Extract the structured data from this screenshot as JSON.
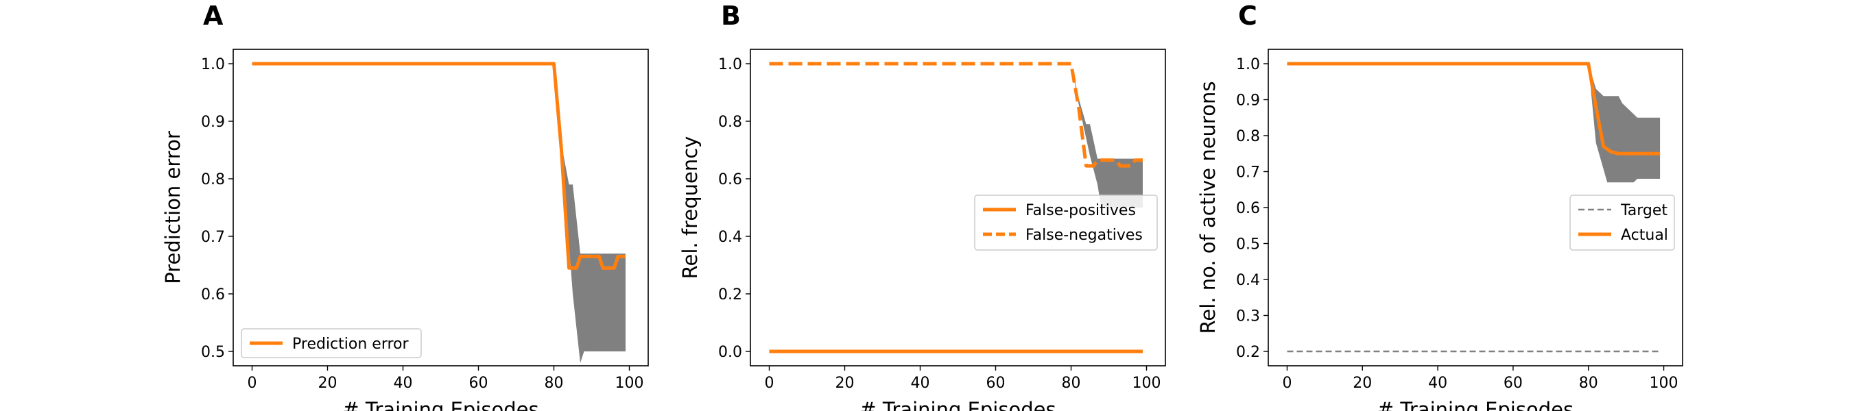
{
  "chart_data": [
    {
      "panel": "A",
      "type": "line",
      "xlabel": "# Training Episodes",
      "ylabel": "Prediction error",
      "xlim": [
        -5,
        105
      ],
      "ylim": [
        0.475,
        1.025
      ],
      "xticks": [
        0,
        20,
        40,
        60,
        80,
        100
      ],
      "yticks": [
        0.5,
        0.6,
        0.7,
        0.8,
        0.9,
        1.0
      ],
      "xtick_labels": [
        "0",
        "20",
        "40",
        "60",
        "80",
        "100"
      ],
      "ytick_labels": [
        "0.5",
        "0.6",
        "0.7",
        "0.8",
        "0.9",
        "1.0"
      ],
      "legend_position": "lower-left",
      "band": {
        "color": "#808080",
        "upper": [
          [
            80,
            1.0
          ],
          [
            82,
            0.86
          ],
          [
            84,
            0.79
          ],
          [
            85,
            0.79
          ],
          [
            87,
            0.67
          ],
          [
            98,
            0.67
          ],
          [
            99,
            0.67
          ]
        ],
        "lower": [
          [
            99,
            0.5
          ],
          [
            88,
            0.5
          ],
          [
            87,
            0.48
          ],
          [
            85,
            0.6
          ],
          [
            82,
            0.86
          ],
          [
            80,
            1.0
          ]
        ]
      },
      "series": [
        {
          "name": "Prediction error",
          "color": "#ff7f0e",
          "dash": "solid",
          "points": [
            [
              0,
              1.0
            ],
            [
              80,
              1.0
            ],
            [
              82,
              0.85
            ],
            [
              84,
              0.645
            ],
            [
              86,
              0.645
            ],
            [
              87,
              0.665
            ],
            [
              92,
              0.665
            ],
            [
              93,
              0.645
            ],
            [
              96,
              0.645
            ],
            [
              97,
              0.665
            ],
            [
              99,
              0.665
            ]
          ]
        }
      ]
    },
    {
      "panel": "B",
      "type": "line",
      "xlabel": "# Training Episodes",
      "ylabel": "Rel. frequency",
      "xlim": [
        -5,
        105
      ],
      "ylim": [
        -0.05,
        1.05
      ],
      "xticks": [
        0,
        20,
        40,
        60,
        80,
        100
      ],
      "yticks": [
        0.0,
        0.2,
        0.4,
        0.6,
        0.8,
        1.0
      ],
      "xtick_labels": [
        "0",
        "20",
        "40",
        "60",
        "80",
        "100"
      ],
      "ytick_labels": [
        "0.0",
        "0.2",
        "0.4",
        "0.6",
        "0.8",
        "1.0"
      ],
      "legend_position": "center-right",
      "band": {
        "color": "#808080",
        "upper": [
          [
            80,
            1.0
          ],
          [
            82,
            0.88
          ],
          [
            84,
            0.79
          ],
          [
            85,
            0.79
          ],
          [
            87,
            0.67
          ],
          [
            99,
            0.67
          ]
        ],
        "lower": [
          [
            99,
            0.5
          ],
          [
            88,
            0.5
          ],
          [
            87,
            0.58
          ],
          [
            85,
            0.68
          ],
          [
            82,
            0.86
          ],
          [
            80,
            1.0
          ]
        ]
      },
      "series": [
        {
          "name": "False-positives",
          "color": "#ff7f0e",
          "dash": "solid",
          "points": [
            [
              0,
              0.0
            ],
            [
              99,
              0.0
            ]
          ]
        },
        {
          "name": "False-negatives",
          "color": "#ff7f0e",
          "dash": "dashed",
          "points": [
            [
              0,
              1.0
            ],
            [
              80,
              1.0
            ],
            [
              82,
              0.85
            ],
            [
              84,
              0.645
            ],
            [
              86,
              0.645
            ],
            [
              87,
              0.665
            ],
            [
              92,
              0.665
            ],
            [
              93,
              0.645
            ],
            [
              96,
              0.645
            ],
            [
              97,
              0.665
            ],
            [
              99,
              0.665
            ]
          ]
        }
      ]
    },
    {
      "panel": "C",
      "type": "line",
      "xlabel": "# Training Episodes",
      "ylabel": "Rel. no. of active neurons",
      "xlim": [
        -5,
        105
      ],
      "ylim": [
        0.16,
        1.04
      ],
      "xticks": [
        0,
        20,
        40,
        60,
        80,
        100
      ],
      "yticks": [
        0.2,
        0.3,
        0.4,
        0.5,
        0.6,
        0.7,
        0.8,
        0.9,
        1.0
      ],
      "xtick_labels": [
        "0",
        "20",
        "40",
        "60",
        "80",
        "100"
      ],
      "ytick_labels": [
        "0.2",
        "0.3",
        "0.4",
        "0.5",
        "0.6",
        "0.7",
        "0.8",
        "0.9",
        "1.0"
      ],
      "legend_position": "center-right",
      "band": {
        "color": "#808080",
        "upper": [
          [
            80,
            1.0
          ],
          [
            82,
            0.93
          ],
          [
            84,
            0.91
          ],
          [
            88,
            0.91
          ],
          [
            89,
            0.89
          ],
          [
            93,
            0.85
          ],
          [
            99,
            0.85
          ]
        ],
        "lower": [
          [
            99,
            0.68
          ],
          [
            93,
            0.68
          ],
          [
            92,
            0.67
          ],
          [
            85,
            0.67
          ],
          [
            82,
            0.78
          ],
          [
            80,
            1.0
          ]
        ]
      },
      "series": [
        {
          "name": "Target",
          "color": "#808080",
          "dash": "dashed-thin",
          "points": [
            [
              0,
              0.2
            ],
            [
              99,
              0.2
            ]
          ]
        },
        {
          "name": "Actual",
          "color": "#ff7f0e",
          "dash": "solid",
          "points": [
            [
              0,
              1.0
            ],
            [
              80,
              1.0
            ],
            [
              82,
              0.88
            ],
            [
              84,
              0.77
            ],
            [
              86,
              0.755
            ],
            [
              88,
              0.75
            ],
            [
              99,
              0.75
            ]
          ]
        }
      ]
    }
  ]
}
